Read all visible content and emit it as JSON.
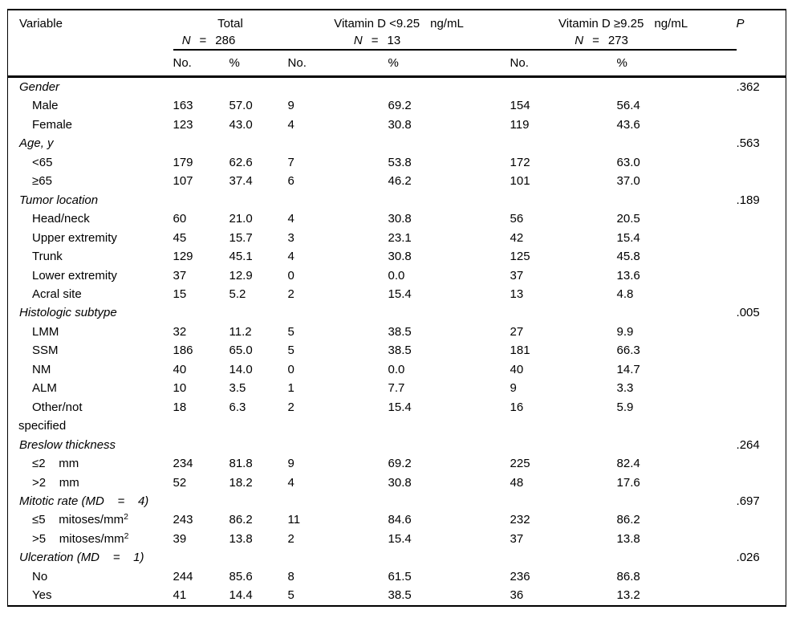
{
  "table": {
    "columns": {
      "variable": "Variable",
      "p": "P"
    },
    "groups": [
      {
        "title": "Total",
        "unit": "",
        "n": "N",
        "eq": "=",
        "count": "286"
      },
      {
        "title": "Vitamin D <9.25",
        "unit": "ng/mL",
        "n": "N",
        "eq": "=",
        "count": "13"
      },
      {
        "title": "Vitamin D ≥9.25",
        "unit": "ng/mL",
        "n": "N",
        "eq": "=",
        "count": "273"
      }
    ],
    "subheaders": [
      "No.",
      "%",
      "No.",
      "%",
      "No.",
      "%"
    ],
    "rows": [
      {
        "type": "category",
        "label": "Gender",
        "p": ".362"
      },
      {
        "type": "item",
        "label": "Male",
        "values": [
          "163",
          "57.0",
          "9",
          "69.2",
          "154",
          "56.4"
        ]
      },
      {
        "type": "item",
        "label": "Female",
        "values": [
          "123",
          "43.0",
          "4",
          "30.8",
          "119",
          "43.6"
        ]
      },
      {
        "type": "category",
        "label": "Age, y",
        "p": ".563"
      },
      {
        "type": "item",
        "label": "<65",
        "values": [
          "179",
          "62.6",
          "7",
          "53.8",
          "172",
          "63.0"
        ]
      },
      {
        "type": "item",
        "label": "≥65",
        "values": [
          "107",
          "37.4",
          "6",
          "46.2",
          "101",
          "37.0"
        ]
      },
      {
        "type": "category",
        "label": "Tumor location",
        "p": ".189"
      },
      {
        "type": "item",
        "label": "Head/neck",
        "values": [
          "60",
          "21.0",
          "4",
          "30.8",
          "56",
          "20.5"
        ]
      },
      {
        "type": "item",
        "label": "Upper extremity",
        "values": [
          "45",
          "15.7",
          "3",
          "23.1",
          "42",
          "15.4"
        ]
      },
      {
        "type": "item",
        "label": "Trunk",
        "values": [
          "129",
          "45.1",
          "4",
          "30.8",
          "125",
          "45.8"
        ]
      },
      {
        "type": "item",
        "label": "Lower extremity",
        "values": [
          "37",
          "12.9",
          "0",
          "0.0",
          "37",
          "13.6"
        ]
      },
      {
        "type": "item",
        "label": "Acral site",
        "values": [
          "15",
          "5.2",
          "2",
          "15.4",
          "13",
          "4.8"
        ]
      },
      {
        "type": "category",
        "label": "Histologic subtype",
        "p": ".005"
      },
      {
        "type": "item",
        "label": "LMM",
        "values": [
          "32",
          "11.2",
          "5",
          "38.5",
          "27",
          "9.9"
        ]
      },
      {
        "type": "item",
        "label": "SSM",
        "values": [
          "186",
          "65.0",
          "5",
          "38.5",
          "181",
          "66.3"
        ]
      },
      {
        "type": "item",
        "label": "NM",
        "values": [
          "40",
          "14.0",
          "0",
          "0.0",
          "40",
          "14.7"
        ]
      },
      {
        "type": "item",
        "label": "ALM",
        "values": [
          "10",
          "3.5",
          "1",
          "7.7",
          "9",
          "3.3"
        ]
      },
      {
        "type": "item",
        "label": "Other/not",
        "label2": "specified",
        "values": [
          "18",
          "6.3",
          "2",
          "15.4",
          "16",
          "5.9"
        ]
      },
      {
        "type": "category",
        "label": "Breslow thickness",
        "p": ".264"
      },
      {
        "type": "item",
        "label": "≤2    mm",
        "values": [
          "234",
          "81.8",
          "9",
          "69.2",
          "225",
          "82.4"
        ]
      },
      {
        "type": "item",
        "label": ">2    mm",
        "values": [
          "52",
          "18.2",
          "4",
          "30.8",
          "48",
          "17.6"
        ]
      },
      {
        "type": "category",
        "label": "Mitotic rate (MD    =    4)",
        "p": ".697"
      },
      {
        "type": "item",
        "label": "≤5    mitoses/mm",
        "sup": "2",
        "values": [
          "243",
          "86.2",
          "11",
          "84.6",
          "232",
          "86.2"
        ]
      },
      {
        "type": "item",
        "label": ">5    mitoses/mm",
        "sup": "2",
        "values": [
          "39",
          "13.8",
          "2",
          "15.4",
          "37",
          "13.8"
        ]
      },
      {
        "type": "category",
        "label": "Ulceration (MD    =    1)",
        "p": ".026"
      },
      {
        "type": "item",
        "label": "No",
        "values": [
          "244",
          "85.6",
          "8",
          "61.5",
          "236",
          "86.8"
        ]
      },
      {
        "type": "item",
        "label": "Yes",
        "values": [
          "41",
          "14.4",
          "5",
          "38.5",
          "36",
          "13.2"
        ]
      }
    ]
  }
}
